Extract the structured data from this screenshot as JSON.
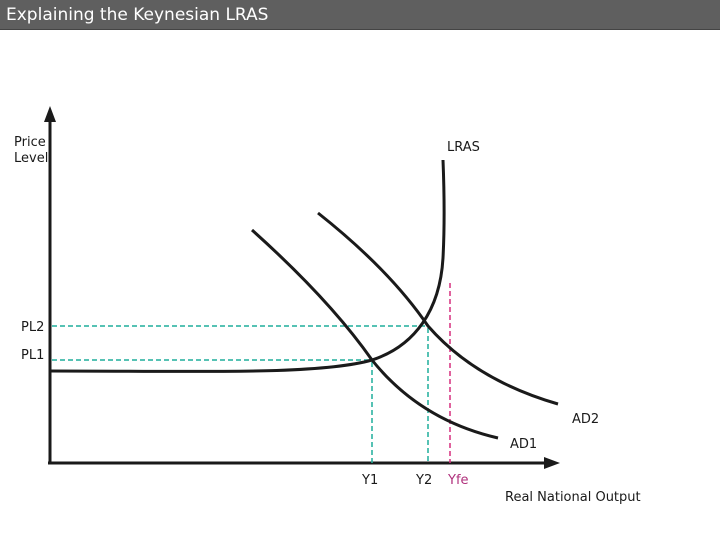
{
  "title": "Explaining the Keynesian LRAS",
  "axes": {
    "y_label_line1": "Price",
    "y_label_line2": "Level",
    "x_label": "Real National Output"
  },
  "curves": {
    "lras": "LRAS",
    "ad1": "AD1",
    "ad2": "AD2"
  },
  "price_levels": {
    "pl1": "PL1",
    "pl2": "PL2"
  },
  "output_levels": {
    "y1": "Y1",
    "y2": "Y2",
    "yfe": "Yfe"
  },
  "colors": {
    "title_bar": "#5f5f5f",
    "title_text": "#ffffff",
    "curve": "#1a1a1a",
    "guide_dashed": "#1fae9c",
    "yfe_dashed": "#d62f7f",
    "yfe_text": "#b0307c"
  }
}
